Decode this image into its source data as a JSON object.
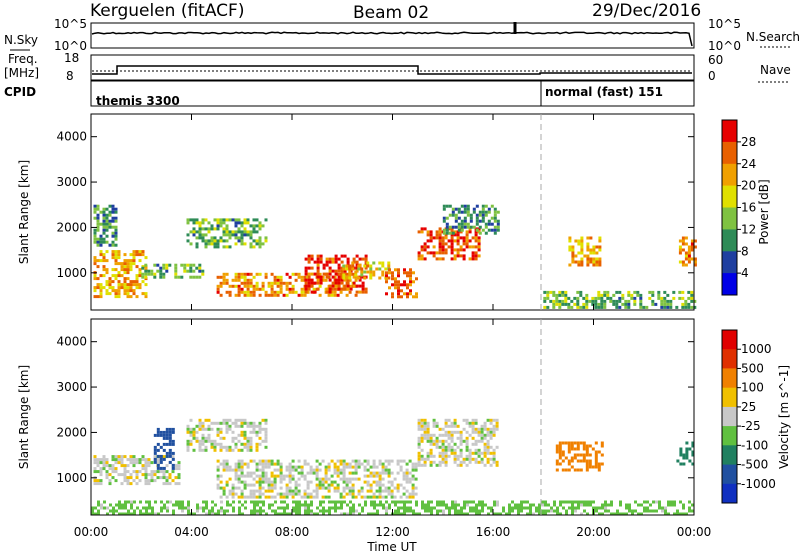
{
  "header": {
    "station": "Kerguelen (fitACF)",
    "beam": "Beam 02",
    "date": "29/Dec/2016"
  },
  "noise_panel": {
    "left_label": "N.Sky",
    "right_label": "N.Search",
    "left_ticks": [
      "10^5",
      "10^0"
    ],
    "right_ticks": [
      "10^5",
      "10^0"
    ]
  },
  "freq_panel": {
    "left_label_line1": "Freq.",
    "left_label_line2": "[MHz]",
    "right_label": "Nave",
    "left_ticks": [
      "18",
      "8"
    ],
    "right_ticks": [
      "60",
      "0"
    ]
  },
  "cpid_panel": {
    "label": "CPID",
    "modes": [
      {
        "name": "themis 3300",
        "start_hour": 0
      },
      {
        "name": "normal (fast) 151",
        "start_hour": 18
      }
    ]
  },
  "colors": {
    "power_scale": [
      "#0000e6",
      "#1f3fa0",
      "#2e8b57",
      "#7fc241",
      "#e0e000",
      "#f0a000",
      "#e86000",
      "#e60000"
    ],
    "velocity_scale": [
      "#1030c0",
      "#2050a0",
      "#208060",
      "#60c040",
      "#c8c8c8",
      "#f0c000",
      "#f08000",
      "#e03000",
      "#e00000"
    ]
  },
  "chart_data": [
    {
      "type": "heatmap",
      "title": "Power",
      "xlabel": "",
      "ylabel": "Slant Range [km]",
      "xlim_hours": [
        0,
        24
      ],
      "ylim": [
        180,
        4500
      ],
      "yticks": [
        "1000",
        "2000",
        "3000",
        "4000"
      ],
      "colorbar": {
        "label": "Power [dB]",
        "ticks": [
          "28",
          "24",
          "20",
          "16",
          "12",
          "8",
          "4"
        ],
        "range": [
          0,
          30
        ]
      },
      "regions": [
        {
          "t0": 0.1,
          "t1": 2.2,
          "r0": 500,
          "r1": 1500,
          "value": 20
        },
        {
          "t0": 0.1,
          "t1": 1.0,
          "r0": 1600,
          "r1": 2500,
          "value": 10
        },
        {
          "t0": 2.0,
          "t1": 4.5,
          "r0": 900,
          "r1": 1200,
          "value": 12
        },
        {
          "t0": 3.8,
          "t1": 7.0,
          "r0": 1600,
          "r1": 2200,
          "value": 12
        },
        {
          "t0": 5.0,
          "t1": 10.5,
          "r0": 500,
          "r1": 1000,
          "value": 22
        },
        {
          "t0": 8.5,
          "t1": 11.0,
          "r0": 600,
          "r1": 1400,
          "value": 26
        },
        {
          "t0": 10.0,
          "t1": 11.8,
          "r0": 900,
          "r1": 1250,
          "value": 18
        },
        {
          "t0": 11.7,
          "t1": 12.9,
          "r0": 500,
          "r1": 1100,
          "value": 24
        },
        {
          "t0": 13.0,
          "t1": 15.5,
          "r0": 1300,
          "r1": 2000,
          "value": 25
        },
        {
          "t0": 14.0,
          "t1": 16.2,
          "r0": 1900,
          "r1": 2500,
          "value": 10
        },
        {
          "t0": 19.0,
          "t1": 20.2,
          "r0": 1200,
          "r1": 1800,
          "value": 20
        },
        {
          "t0": 23.4,
          "t1": 24.0,
          "r0": 1200,
          "r1": 1800,
          "value": 22
        },
        {
          "t0": 18.0,
          "t1": 24.0,
          "r0": 250,
          "r1": 600,
          "value": 12
        }
      ]
    },
    {
      "type": "heatmap",
      "title": "Velocity",
      "xlabel": "Time UT",
      "ylabel": "Slant Range [km]",
      "xlim_hours": [
        0,
        24
      ],
      "ylim": [
        180,
        4500
      ],
      "xticks": [
        "00:00",
        "04:00",
        "08:00",
        "12:00",
        "16:00",
        "20:00",
        "00:00"
      ],
      "yticks": [
        "1000",
        "2000",
        "3000",
        "4000"
      ],
      "colorbar": {
        "label": "Velocity [m s^-1]",
        "ticks": [
          "1000",
          "500",
          "100",
          "25",
          "-25",
          "-100",
          "-500",
          "-1000"
        ],
        "range": [
          -1200,
          1200
        ]
      },
      "regions": [
        {
          "t0": 0.1,
          "t1": 3.5,
          "r0": 900,
          "r1": 1500,
          "value": 0
        },
        {
          "t0": 2.5,
          "t1": 3.3,
          "r0": 1200,
          "r1": 2100,
          "value": 700
        },
        {
          "t0": 3.8,
          "t1": 7.0,
          "r0": 1600,
          "r1": 2300,
          "value": 0
        },
        {
          "t0": 5.0,
          "t1": 12.9,
          "r0": 600,
          "r1": 1400,
          "value": 0
        },
        {
          "t0": 13.0,
          "t1": 16.2,
          "r0": 1300,
          "r1": 2300,
          "value": 0
        },
        {
          "t0": 18.5,
          "t1": 20.3,
          "r0": 1200,
          "r1": 1800,
          "value": -200
        },
        {
          "t0": 23.3,
          "t1": 24.0,
          "r0": 1300,
          "r1": 1800,
          "value": 300
        },
        {
          "t0": 0.0,
          "t1": 24.0,
          "r0": 200,
          "r1": 500,
          "value": 60
        }
      ]
    }
  ]
}
